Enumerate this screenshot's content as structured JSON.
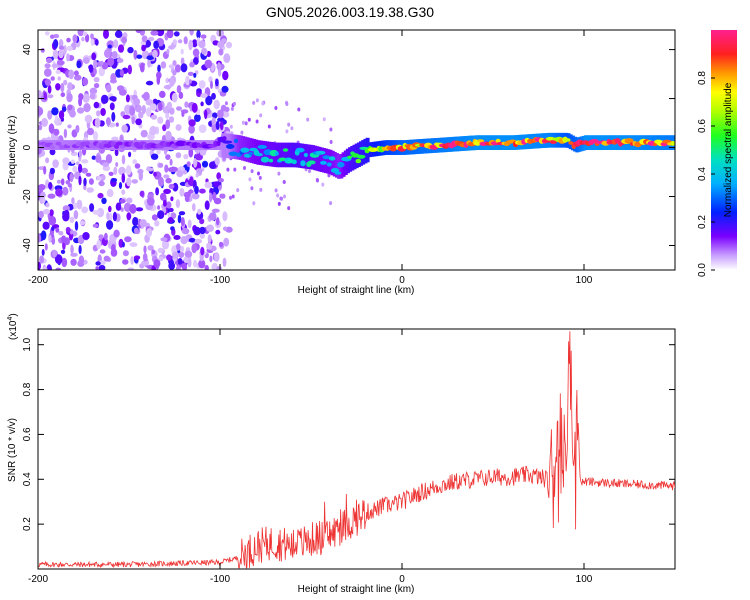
{
  "title": "GN05.2026.003.19.38.G30",
  "chart_data": [
    {
      "type": "heatmap",
      "xlabel": "Height of straight line (km)",
      "ylabel": "Frequency (Hz)",
      "xlim": [
        -200,
        150
      ],
      "ylim": [
        -50,
        48
      ],
      "xticks": [
        "-200",
        "-100",
        "0",
        "100"
      ],
      "xtick_values": [
        -200,
        -100,
        0,
        100
      ],
      "yticks": [
        "-40",
        "-20",
        "0",
        "20",
        "40"
      ],
      "ytick_values": [
        -40,
        -20,
        0,
        20,
        40
      ],
      "colorbar": {
        "label": "Normalized spectral amplitude",
        "range": [
          0,
          1
        ],
        "ticks": [
          "0.0",
          "0.2",
          "0.4",
          "0.6",
          "0.8"
        ],
        "tick_values": [
          0.0,
          0.2,
          0.4,
          0.6,
          0.8
        ]
      },
      "ridge": {
        "x": [
          -200,
          -150,
          -100,
          -90,
          -80,
          -70,
          -60,
          -50,
          -40,
          -35,
          -30,
          -20,
          -10,
          0,
          20,
          40,
          60,
          80,
          90,
          95,
          100,
          120,
          150
        ],
        "freq": [
          1,
          1,
          1,
          0,
          -2,
          -3,
          -3,
          -4,
          -6,
          -8,
          -5,
          -1,
          0,
          0,
          1,
          2,
          2,
          3,
          3,
          1,
          2,
          2,
          2
        ],
        "amplitude": [
          0.1,
          0.12,
          0.15,
          0.35,
          0.4,
          0.45,
          0.5,
          0.45,
          0.4,
          0.35,
          0.5,
          0.6,
          0.75,
          0.85,
          0.9,
          0.95,
          0.95,
          0.92,
          0.8,
          0.85,
          0.95,
          0.95,
          0.9
        ]
      }
    },
    {
      "type": "line",
      "xlabel": "Height of straight line (km)",
      "ylabel": "SNR (10 * v/v)",
      "y_multiplier": "(x10",
      "y_multiplier_exp": "4",
      "y_multiplier_close": ")",
      "xlim": [
        -200,
        150
      ],
      "ylim": [
        0,
        1.07
      ],
      "xticks": [
        "-200",
        "-100",
        "0",
        "100"
      ],
      "xtick_values": [
        -200,
        -100,
        0,
        100
      ],
      "yticks": [
        "0.2",
        "0.4",
        "0.6",
        "0.8",
        "1.0"
      ],
      "ytick_values": [
        0.2,
        0.4,
        0.6,
        0.8,
        1.0
      ],
      "color": "#ee3333",
      "series": [
        {
          "name": "SNR",
          "x": [
            -200,
            -150,
            -100,
            -90,
            -80,
            -70,
            -60,
            -50,
            -40,
            -30,
            -20,
            -10,
            0,
            10,
            20,
            30,
            40,
            50,
            60,
            70,
            80,
            85,
            90,
            92,
            94,
            96,
            98,
            100,
            120,
            150
          ],
          "y": [
            0.02,
            0.02,
            0.03,
            0.05,
            0.1,
            0.12,
            0.1,
            0.13,
            0.15,
            0.2,
            0.25,
            0.28,
            0.3,
            0.34,
            0.37,
            0.39,
            0.4,
            0.41,
            0.41,
            0.42,
            0.4,
            0.45,
            0.5,
            1.06,
            0.4,
            0.87,
            0.38,
            0.39,
            0.38,
            0.37
          ]
        }
      ]
    }
  ]
}
